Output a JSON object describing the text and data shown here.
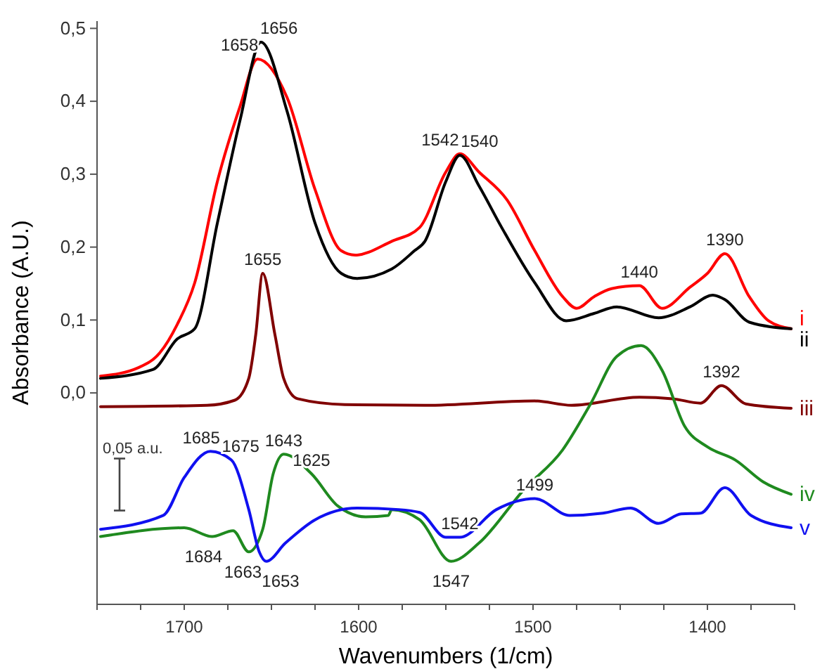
{
  "chart_data": {
    "type": "line",
    "xlabel": "Wavenumbers (1/cm)",
    "ylabel": "Absorbance (A.U.)",
    "xlim": [
      1750,
      1350
    ],
    "ylim": [
      -0.29,
      0.51
    ],
    "xticks": [
      {
        "value": 1750,
        "label": null
      },
      {
        "value": 1725,
        "label": null
      },
      1700,
      {
        "value": 1675,
        "label": null
      },
      {
        "value": 1650,
        "label": null
      },
      {
        "value": 1625,
        "label": null
      },
      1600,
      {
        "value": 1575,
        "label": null
      },
      {
        "value": 1550,
        "label": null
      },
      {
        "value": 1525,
        "label": null
      },
      1500,
      {
        "value": 1475,
        "label": null
      },
      {
        "value": 1450,
        "label": null
      },
      {
        "value": 1425,
        "label": null
      },
      1400,
      {
        "value": 1375,
        "label": null
      },
      {
        "value": 1350,
        "label": null
      }
    ],
    "yticks": [
      {
        "value": 0,
        "label": "0,0"
      },
      {
        "value": 0.1,
        "label": "0,1"
      },
      {
        "value": 0.2,
        "label": "0,2"
      },
      {
        "value": 0.3,
        "label": "0,3"
      },
      {
        "value": 0.4,
        "label": "0,4"
      },
      {
        "value": 0.5,
        "label": "0,5"
      }
    ],
    "grid": false,
    "series": [
      {
        "name": "i",
        "color": "#ff0000",
        "x": [
          1748,
          1726,
          1714,
          1704,
          1694,
          1681,
          1668,
          1658,
          1641,
          1625,
          1610,
          1602,
          1581,
          1565,
          1550,
          1542,
          1531,
          1515,
          1499,
          1483,
          1475,
          1465,
          1455,
          1439,
          1426,
          1410,
          1400,
          1390,
          1376,
          1365,
          1352
        ],
        "values": [
          0.023,
          0.035,
          0.055,
          0.094,
          0.151,
          0.29,
          0.393,
          0.458,
          0.405,
          0.279,
          0.195,
          0.189,
          0.208,
          0.227,
          0.303,
          0.328,
          0.303,
          0.265,
          0.195,
          0.132,
          0.116,
          0.132,
          0.143,
          0.147,
          0.116,
          0.145,
          0.164,
          0.191,
          0.132,
          0.099,
          0.088
        ]
      },
      {
        "name": "ii",
        "color": "#000000",
        "x": [
          1748,
          1718,
          1704,
          1694,
          1681,
          1668,
          1656,
          1641,
          1625,
          1610,
          1601,
          1581,
          1568,
          1562,
          1550,
          1542,
          1531,
          1518,
          1499,
          1481,
          1465,
          1452,
          1428,
          1410,
          1397,
          1390,
          1376,
          1352
        ],
        "values": [
          0.02,
          0.032,
          0.074,
          0.088,
          0.233,
          0.374,
          0.481,
          0.386,
          0.233,
          0.164,
          0.157,
          0.17,
          0.195,
          0.208,
          0.29,
          0.326,
          0.284,
          0.227,
          0.151,
          0.099,
          0.109,
          0.118,
          0.103,
          0.118,
          0.134,
          0.128,
          0.097,
          0.088
        ]
      },
      {
        "name": "iii",
        "color": "#800000",
        "x": [
          1748,
          1687,
          1671,
          1663,
          1659,
          1655,
          1648,
          1643,
          1635,
          1608,
          1562,
          1499,
          1478,
          1439,
          1420,
          1404,
          1392,
          1378,
          1352
        ],
        "values": [
          -0.019,
          -0.017,
          -0.01,
          0.02,
          0.08,
          0.164,
          0.08,
          0.02,
          -0.008,
          -0.016,
          -0.017,
          -0.011,
          -0.017,
          -0.006,
          -0.008,
          -0.014,
          0.01,
          -0.015,
          -0.021
        ]
      },
      {
        "name": "iv",
        "color": "#1f8a1f",
        "x": [
          1748,
          1700,
          1684,
          1672,
          1663,
          1655,
          1649,
          1643,
          1627,
          1612,
          1596,
          1583,
          1581,
          1565,
          1547,
          1531,
          1505,
          1483,
          1467,
          1452,
          1438,
          1426,
          1413,
          1400,
          1384,
          1368,
          1352
        ],
        "values": [
          -0.197,
          -0.185,
          -0.197,
          -0.189,
          -0.218,
          -0.187,
          -0.111,
          -0.084,
          -0.111,
          -0.155,
          -0.17,
          -0.168,
          -0.16,
          -0.174,
          -0.231,
          -0.206,
          -0.132,
          -0.078,
          -0.015,
          0.05,
          0.065,
          0.031,
          -0.046,
          -0.074,
          -0.092,
          -0.122,
          -0.139
        ]
      },
      {
        "name": "v",
        "color": "#1010f0",
        "x": [
          1748,
          1712,
          1700,
          1685,
          1673,
          1663,
          1657,
          1653,
          1642,
          1625,
          1601,
          1577,
          1565,
          1550,
          1542,
          1521,
          1499,
          1479,
          1460,
          1444,
          1428,
          1415,
          1404,
          1390,
          1375,
          1352
        ],
        "values": [
          -0.187,
          -0.168,
          -0.116,
          -0.08,
          -0.092,
          -0.16,
          -0.218,
          -0.231,
          -0.206,
          -0.174,
          -0.158,
          -0.16,
          -0.164,
          -0.198,
          -0.198,
          -0.16,
          -0.145,
          -0.168,
          -0.165,
          -0.158,
          -0.179,
          -0.166,
          -0.165,
          -0.13,
          -0.168,
          -0.185
        ]
      }
    ],
    "annotations": [
      {
        "text": "1658",
        "x": 1658,
        "y": 0.458
      },
      {
        "text": "1656",
        "x": 1656,
        "y": 0.481
      },
      {
        "text": "1542",
        "x": 1542,
        "y": 0.328
      },
      {
        "text": "1540",
        "x": 1542,
        "y": 0.326
      },
      {
        "text": "1440",
        "x": 1439,
        "y": 0.147
      },
      {
        "text": "1390",
        "x": 1390,
        "y": 0.191
      },
      {
        "text": "1655",
        "x": 1655,
        "y": 0.164
      },
      {
        "text": "1392",
        "x": 1392,
        "y": 0.01
      },
      {
        "text": "1685",
        "x": 1685,
        "y": -0.08
      },
      {
        "text": "1675",
        "x": 1673,
        "y": -0.092
      },
      {
        "text": "1643",
        "x": 1643,
        "y": -0.084
      },
      {
        "text": "1625",
        "x": 1627,
        "y": -0.111
      },
      {
        "text": "1684",
        "x": 1684,
        "y": -0.197
      },
      {
        "text": "1663",
        "x": 1663,
        "y": -0.218
      },
      {
        "text": "1653",
        "x": 1653,
        "y": -0.231
      },
      {
        "text": "1547",
        "x": 1547,
        "y": -0.231
      },
      {
        "text": "1542",
        "x": 1542,
        "y": -0.198
      },
      {
        "text": "1499",
        "x": 1499,
        "y": -0.145
      },
      "0,05 a.u."
    ]
  }
}
